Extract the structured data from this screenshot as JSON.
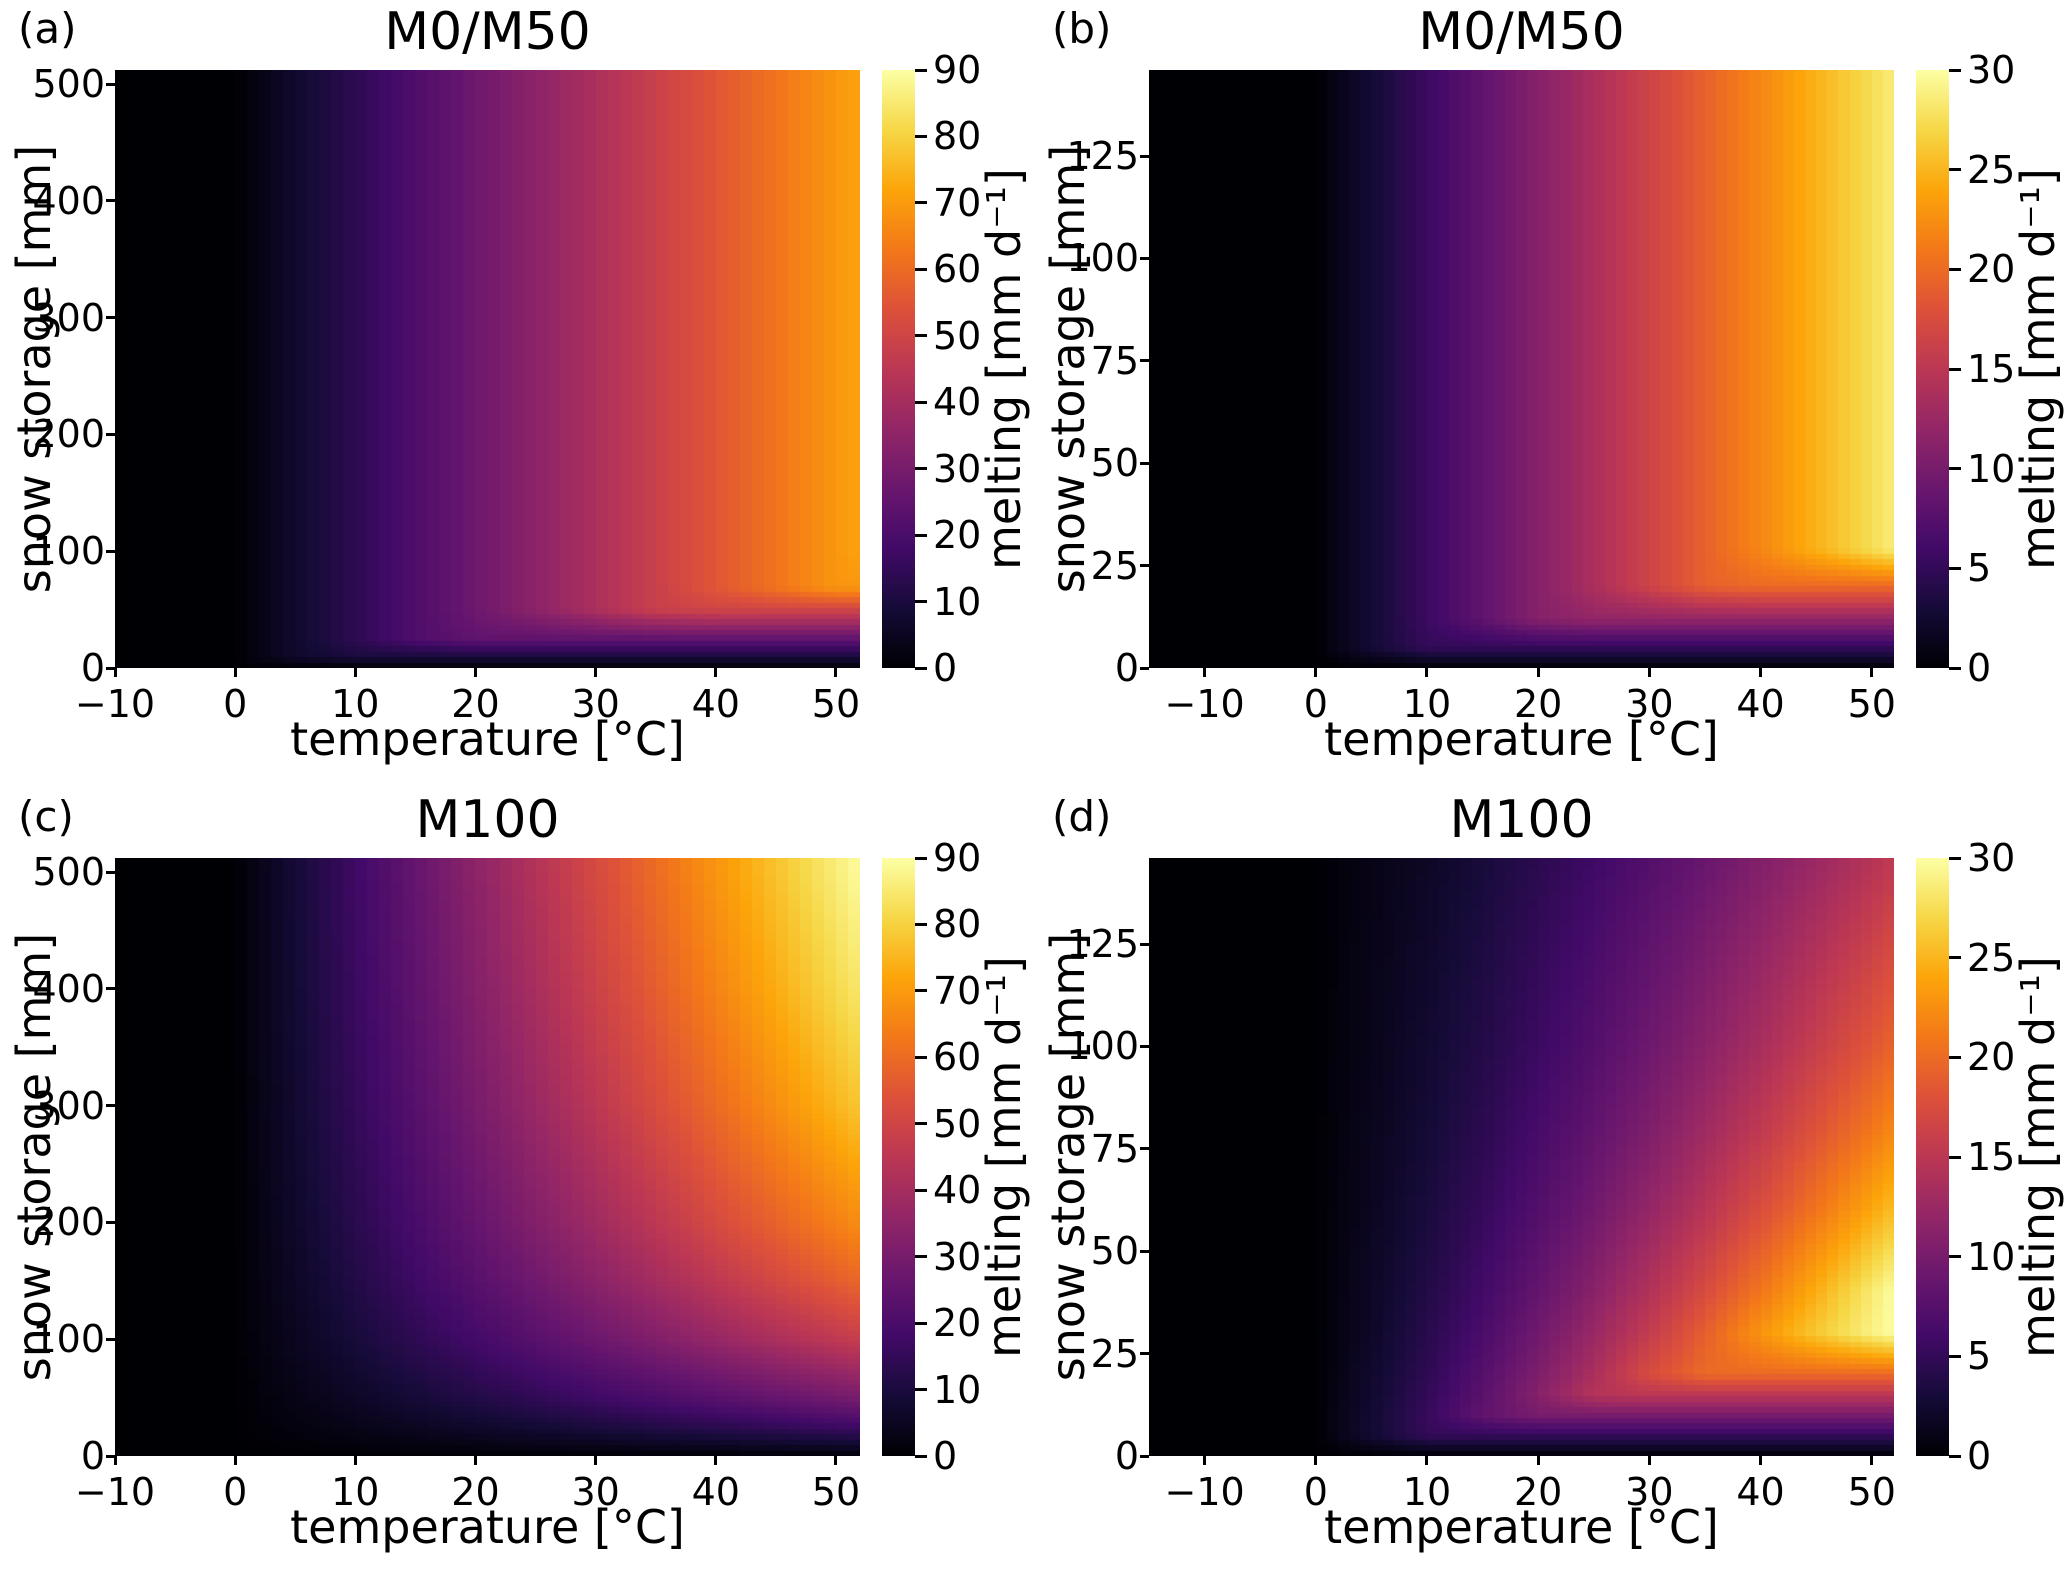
{
  "style": {
    "background": "#ffffff",
    "text_color": "#000000",
    "colormap_name": "inferno",
    "colormap_stops": [
      "#000004",
      "#160b39",
      "#420a68",
      "#6a176e",
      "#932667",
      "#bc3754",
      "#dd513a",
      "#f37819",
      "#fca50a",
      "#f6d746",
      "#fcffa4"
    ]
  },
  "chart_data": [
    {
      "type": "heatmap",
      "panel_label": "(a)",
      "title": "M0/M50",
      "xlabel": "temperature [°C]",
      "ylabel": "snow storage [mm]",
      "colorbar_label": "melting [mm d⁻¹]",
      "xlim": [
        -10,
        52
      ],
      "ylim": [
        0,
        512
      ],
      "xticks": [
        -10,
        0,
        10,
        20,
        30,
        40,
        50
      ],
      "yticks": [
        0,
        100,
        200,
        300,
        400,
        500
      ],
      "vmin": 0,
      "vmax": 90,
      "colorbar_ticks": [
        0,
        10,
        20,
        30,
        40,
        50,
        60,
        70,
        80,
        90
      ],
      "x_temperature": [
        -10,
        0,
        5,
        10,
        15,
        20,
        25,
        30,
        35,
        40,
        45,
        50,
        52
      ],
      "y_snow_storage": [
        0,
        10,
        25,
        50,
        69,
        100,
        500
      ],
      "melting_values": [
        [
          0,
          0,
          0,
          0,
          0,
          0,
          0,
          0,
          0,
          0,
          0,
          0,
          0
        ],
        [
          0,
          0,
          6.9,
          10,
          10,
          10,
          10,
          10,
          10,
          10,
          10,
          10,
          10
        ],
        [
          0,
          0,
          6.9,
          13.8,
          20.7,
          25,
          25,
          25,
          25,
          25,
          25,
          25,
          25
        ],
        [
          0,
          0,
          6.9,
          13.8,
          20.7,
          27.6,
          34.5,
          41.4,
          48.3,
          50,
          50,
          50,
          50
        ],
        [
          0,
          0,
          6.9,
          13.8,
          20.7,
          27.6,
          34.5,
          41.4,
          48.3,
          55.2,
          62.1,
          69,
          69
        ],
        [
          0,
          0,
          6.9,
          13.8,
          20.7,
          27.6,
          34.5,
          41.4,
          48.3,
          55.2,
          62.1,
          69,
          71.8
        ],
        [
          0,
          0,
          6.9,
          13.8,
          20.7,
          27.6,
          34.5,
          41.4,
          48.3,
          55.2,
          62.1,
          69,
          71.8
        ]
      ]
    },
    {
      "type": "heatmap",
      "panel_label": "(b)",
      "title": "M0/M50",
      "xlabel": "temperature [°C]",
      "ylabel": "snow storage [mm]",
      "colorbar_label": "melting [mm d⁻¹]",
      "xlim": [
        -15,
        52
      ],
      "ylim": [
        0,
        146
      ],
      "xticks": [
        -10,
        0,
        10,
        20,
        30,
        40,
        50
      ],
      "yticks": [
        0,
        25,
        50,
        75,
        100,
        125
      ],
      "vmin": 0,
      "vmax": 30,
      "colorbar_ticks": [
        0,
        5,
        10,
        15,
        20,
        25,
        30
      ],
      "x_temperature": [
        -15,
        0,
        5,
        10,
        15,
        20,
        25,
        30,
        35,
        40,
        45,
        50,
        52
      ],
      "y_snow_storage": [
        0,
        5,
        12,
        20,
        29,
        50,
        145
      ],
      "melting_values": [
        [
          0,
          0,
          0,
          0,
          0,
          0,
          0,
          0,
          0,
          0,
          0,
          0,
          0
        ],
        [
          0,
          0,
          2.75,
          5,
          5,
          5,
          5,
          5,
          5,
          5,
          5,
          5,
          5
        ],
        [
          0,
          0,
          2.75,
          5.5,
          8.25,
          11,
          12,
          12,
          12,
          12,
          12,
          12,
          12
        ],
        [
          0,
          0,
          2.75,
          5.5,
          8.25,
          11,
          13.75,
          16.5,
          19.25,
          20,
          20,
          20,
          20
        ],
        [
          0,
          0,
          2.75,
          5.5,
          8.25,
          11,
          13.75,
          16.5,
          19.25,
          22,
          24.75,
          27.5,
          28.6
        ],
        [
          0,
          0,
          2.75,
          5.5,
          8.25,
          11,
          13.75,
          16.5,
          19.25,
          22,
          24.75,
          27.5,
          28.6
        ],
        [
          0,
          0,
          2.75,
          5.5,
          8.25,
          11,
          13.75,
          16.5,
          19.25,
          22,
          24.75,
          27.5,
          28.6
        ]
      ]
    },
    {
      "type": "heatmap",
      "panel_label": "(c)",
      "title": "M100",
      "xlabel": "temperature [°C]",
      "ylabel": "snow storage [mm]",
      "colorbar_label": "melting [mm d⁻¹]",
      "xlim": [
        -10,
        52
      ],
      "ylim": [
        0,
        512
      ],
      "xticks": [
        -10,
        0,
        10,
        20,
        30,
        40,
        50
      ],
      "yticks": [
        0,
        100,
        200,
        300,
        400,
        500
      ],
      "vmin": 0,
      "vmax": 90,
      "colorbar_ticks": [
        0,
        10,
        20,
        30,
        40,
        50,
        60,
        70,
        80,
        90
      ],
      "x_temperature": [
        -10,
        0,
        5,
        10,
        15,
        20,
        25,
        30,
        35,
        40,
        45,
        50,
        52
      ],
      "y_snow_storage": [
        0,
        10,
        25,
        50,
        100,
        150,
        200,
        300,
        400,
        500
      ],
      "melting_values": [
        [
          0,
          0,
          0,
          0,
          0,
          0,
          0,
          0,
          0,
          0,
          0,
          0,
          0
        ],
        [
          0,
          0,
          0.7,
          1.5,
          2.2,
          2.9,
          3.7,
          4.4,
          5.1,
          5.9,
          6.6,
          7.3,
          7.6
        ],
        [
          0,
          0,
          1.7,
          3.3,
          5.0,
          6.7,
          8.3,
          10.0,
          11.7,
          13.3,
          15.0,
          16.7,
          17.3
        ],
        [
          0,
          0,
          2.9,
          5.8,
          8.7,
          11.6,
          14.5,
          17.4,
          20.3,
          23.2,
          26.1,
          28.9,
          30.1
        ],
        [
          0,
          0,
          4.6,
          9.2,
          13.8,
          18.3,
          22.9,
          27.5,
          32.1,
          36.7,
          41.3,
          45.8,
          47.7
        ],
        [
          0,
          0,
          5.7,
          11.4,
          17.1,
          22.8,
          28.4,
          34.1,
          39.8,
          45.5,
          51.2,
          56.9,
          59.2
        ],
        [
          0,
          0,
          6.5,
          12.9,
          19.4,
          25.9,
          32.4,
          38.8,
          45.3,
          51.8,
          58.2,
          64.7,
          67.3
        ],
        [
          0,
          0,
          7.5,
          15.0,
          22.5,
          30.0,
          37.5,
          45.0,
          52.5,
          60.0,
          67.5,
          75.0,
          78.0
        ],
        [
          0,
          0,
          8.1,
          16.3,
          24.4,
          32.6,
          40.7,
          48.9,
          57.0,
          65.2,
          73.3,
          81.5,
          84.7
        ],
        [
          0,
          0,
          8.6,
          17.2,
          25.8,
          34.4,
          43.0,
          51.6,
          60.2,
          68.8,
          77.3,
          85.9,
          89.4
        ]
      ]
    },
    {
      "type": "heatmap",
      "panel_label": "(d)",
      "title": "M100",
      "xlabel": "temperature [°C]",
      "ylabel": "snow storage [mm]",
      "colorbar_label": "melting [mm d⁻¹]",
      "xlim": [
        -15,
        52
      ],
      "ylim": [
        0,
        146
      ],
      "xticks": [
        -10,
        0,
        10,
        20,
        30,
        40,
        50
      ],
      "yticks": [
        0,
        25,
        50,
        75,
        100,
        125
      ],
      "vmin": 0,
      "vmax": 30,
      "colorbar_ticks": [
        0,
        5,
        10,
        15,
        20,
        25,
        30
      ],
      "x_temperature": [
        -15,
        0,
        5,
        10,
        15,
        20,
        25,
        30,
        35,
        40,
        45,
        50,
        52
      ],
      "y_snow_storage": [
        0,
        5,
        10,
        15,
        20,
        30,
        40,
        60,
        80,
        100,
        145
      ],
      "melting_values": [
        [
          0,
          0,
          0,
          0,
          0,
          0,
          0,
          0,
          0,
          0,
          0,
          0,
          0
        ],
        [
          0,
          0,
          2.7,
          5,
          5,
          5,
          5,
          5,
          5,
          5,
          5,
          5,
          5
        ],
        [
          0,
          0,
          2.6,
          5.2,
          8.3,
          10,
          10,
          10,
          10,
          10,
          10,
          10,
          10
        ],
        [
          0,
          0,
          2.4,
          4.9,
          7.8,
          11.0,
          14.5,
          15,
          15,
          15,
          15,
          15,
          15
        ],
        [
          0,
          0,
          2.3,
          4.6,
          7.4,
          10.4,
          13.7,
          17.4,
          20,
          20,
          20,
          20,
          20
        ],
        [
          0,
          0,
          2.0,
          4.2,
          6.6,
          9.4,
          12.4,
          15.6,
          19.1,
          22.9,
          26.1,
          29,
          30
        ],
        [
          0,
          0,
          1.9,
          3.8,
          6.0,
          8.5,
          11.2,
          14.2,
          17.4,
          20.8,
          24.5,
          28.4,
          30
        ],
        [
          0,
          0,
          1.6,
          3.2,
          5.1,
          7.2,
          9.5,
          12.0,
          14.7,
          17.6,
          20.7,
          24.1,
          25.5
        ],
        [
          0,
          0,
          1.4,
          2.8,
          4.4,
          6.3,
          8.3,
          10.4,
          12.8,
          15.3,
          18.0,
          20.8,
          22.1
        ],
        [
          0,
          0,
          1.2,
          2.5,
          3.9,
          5.5,
          7.3,
          9.2,
          11.3,
          13.5,
          15.9,
          18.4,
          19.5
        ],
        [
          0,
          0,
          1.0,
          1.9,
          3.1,
          4.4,
          5.8,
          7.3,
          8.9,
          10.7,
          12.5,
          14.5,
          15.4
        ]
      ]
    }
  ]
}
